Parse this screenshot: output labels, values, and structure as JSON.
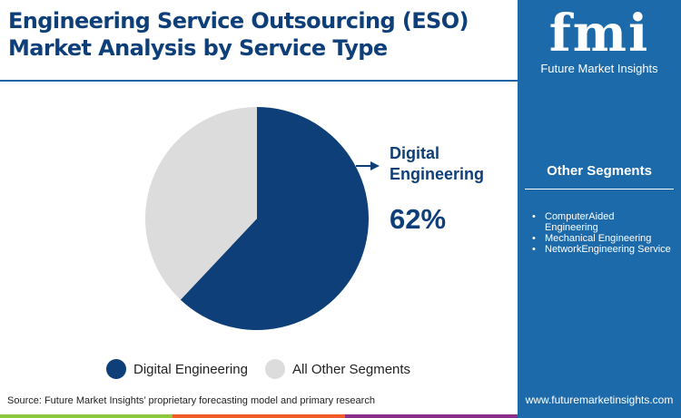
{
  "header": {
    "title_line1": "Engineering Service Outsourcing (ESO)",
    "title_line2": "Market Analysis by Service Type"
  },
  "brand": {
    "logo_text": "fmi",
    "name": "Future Market Insights",
    "url": "www.futuremarketinsights.com"
  },
  "side_panel": {
    "title": "Other Segments",
    "items": [
      "ComputerAided Engineering",
      "Mechanical Engineering",
      "NetworkEngineering Service"
    ]
  },
  "chart_data": {
    "type": "pie",
    "categories": [
      "Digital Engineering",
      "All Other Segments"
    ],
    "values": [
      62,
      38
    ],
    "colors": [
      "#0e3f78",
      "#dcdcdc"
    ],
    "callout": {
      "label": "Digital Engineering",
      "value": "62%"
    },
    "legend": "bottom"
  },
  "footer": {
    "source": "Source: Future Market Insights’ proprietary forecasting model and primary research",
    "stripe_colors": [
      "#8dc63f",
      "#f15a29",
      "#8b2f8b"
    ]
  }
}
